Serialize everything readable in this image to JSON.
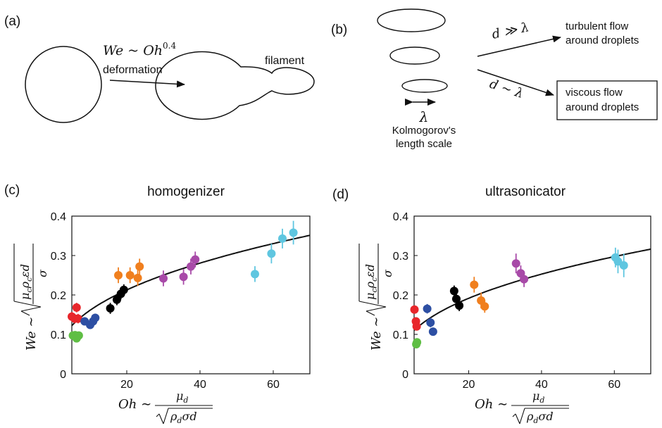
{
  "panel_a": {
    "label": "(a)",
    "relation": "We ~ Oh",
    "relation_exp": "0.4",
    "deformation": "deformation",
    "filament": "filament"
  },
  "panel_b": {
    "label": "(b)",
    "cond_large": "d ≫ λ",
    "cond_sim": "d ~ λ",
    "turbulent_1": "turbulent flow",
    "turbulent_2": "around droplets",
    "viscous_1": "viscous flow",
    "viscous_2": "around droplets",
    "lambda": "λ",
    "kolmo_1": "Kolmogorov's",
    "kolmo_2": "length scale"
  },
  "colors": {
    "red": "#e8262b",
    "green": "#5fbe44",
    "blue": "#2d4fa3",
    "black": "#000000",
    "orange": "#f07f1e",
    "purple": "#a84aa8",
    "cyan": "#5fc6e0"
  },
  "chart_data": [
    {
      "panel": "(c)",
      "type": "scatter",
      "title": "homogenizer",
      "xlim": [
        5,
        70
      ],
      "ylim": [
        0,
        0.4
      ],
      "xticks": [
        "20",
        "40",
        "60"
      ],
      "yticks": [
        "0",
        "0.1",
        "0.2",
        "0.3",
        "0.4"
      ],
      "fit": {
        "law": "We = a·Oh^0.4",
        "a": 0.0642,
        "exponent": 0.4
      },
      "points": [
        {
          "x": 5.0,
          "y": 0.145,
          "err": 0.012,
          "color": "red"
        },
        {
          "x": 5.8,
          "y": 0.14,
          "err": 0.012,
          "color": "red"
        },
        {
          "x": 6.3,
          "y": 0.168,
          "err": 0.012,
          "color": "red"
        },
        {
          "x": 6.7,
          "y": 0.14,
          "err": 0.012,
          "color": "red"
        },
        {
          "x": 5.3,
          "y": 0.097,
          "err": 0.006,
          "color": "green"
        },
        {
          "x": 5.9,
          "y": 0.098,
          "err": 0.006,
          "color": "green"
        },
        {
          "x": 6.3,
          "y": 0.09,
          "err": 0.006,
          "color": "green"
        },
        {
          "x": 6.9,
          "y": 0.097,
          "err": 0.006,
          "color": "green"
        },
        {
          "x": 8.5,
          "y": 0.133,
          "err": 0.01,
          "color": "blue"
        },
        {
          "x": 10.0,
          "y": 0.124,
          "err": 0.01,
          "color": "blue"
        },
        {
          "x": 10.8,
          "y": 0.133,
          "err": 0.01,
          "color": "blue"
        },
        {
          "x": 11.4,
          "y": 0.142,
          "err": 0.01,
          "color": "blue"
        },
        {
          "x": 15.5,
          "y": 0.166,
          "err": 0.014,
          "color": "black"
        },
        {
          "x": 17.3,
          "y": 0.188,
          "err": 0.014,
          "color": "black"
        },
        {
          "x": 18.4,
          "y": 0.203,
          "err": 0.014,
          "color": "black"
        },
        {
          "x": 19.2,
          "y": 0.213,
          "err": 0.014,
          "color": "black"
        },
        {
          "x": 17.7,
          "y": 0.25,
          "err": 0.02,
          "color": "orange"
        },
        {
          "x": 20.9,
          "y": 0.25,
          "err": 0.02,
          "color": "orange"
        },
        {
          "x": 23.0,
          "y": 0.243,
          "err": 0.02,
          "color": "orange"
        },
        {
          "x": 23.5,
          "y": 0.272,
          "err": 0.02,
          "color": "orange"
        },
        {
          "x": 30.0,
          "y": 0.242,
          "err": 0.02,
          "color": "purple"
        },
        {
          "x": 35.5,
          "y": 0.246,
          "err": 0.02,
          "color": "purple"
        },
        {
          "x": 37.5,
          "y": 0.272,
          "err": 0.02,
          "color": "purple"
        },
        {
          "x": 38.7,
          "y": 0.29,
          "err": 0.02,
          "color": "purple"
        },
        {
          "x": 55.0,
          "y": 0.253,
          "err": 0.02,
          "color": "cyan"
        },
        {
          "x": 59.5,
          "y": 0.305,
          "err": 0.025,
          "color": "cyan"
        },
        {
          "x": 62.5,
          "y": 0.343,
          "err": 0.025,
          "color": "cyan"
        },
        {
          "x": 65.5,
          "y": 0.358,
          "err": 0.03,
          "color": "cyan"
        }
      ]
    },
    {
      "panel": "(d)",
      "type": "scatter",
      "title": "ultrasonicator",
      "xlim": [
        5,
        70
      ],
      "ylim": [
        0,
        0.4
      ],
      "xticks": [
        "20",
        "40",
        "60"
      ],
      "yticks": [
        "0",
        "0.1",
        "0.2",
        "0.3",
        "0.4"
      ],
      "fit": {
        "law": "We = a·Oh^0.4",
        "a": 0.0578,
        "exponent": 0.4
      },
      "points": [
        {
          "x": 5.1,
          "y": 0.163,
          "err": 0.01,
          "color": "red"
        },
        {
          "x": 5.5,
          "y": 0.133,
          "err": 0.01,
          "color": "red"
        },
        {
          "x": 5.7,
          "y": 0.12,
          "err": 0.01,
          "color": "red"
        },
        {
          "x": 5.6,
          "y": 0.075,
          "err": 0.005,
          "color": "green"
        },
        {
          "x": 5.8,
          "y": 0.08,
          "err": 0.005,
          "color": "green"
        },
        {
          "x": 8.6,
          "y": 0.165,
          "err": 0.012,
          "color": "blue"
        },
        {
          "x": 9.5,
          "y": 0.13,
          "err": 0.012,
          "color": "blue"
        },
        {
          "x": 10.2,
          "y": 0.107,
          "err": 0.01,
          "color": "blue"
        },
        {
          "x": 16.0,
          "y": 0.21,
          "err": 0.014,
          "color": "black"
        },
        {
          "x": 16.6,
          "y": 0.19,
          "err": 0.014,
          "color": "black"
        },
        {
          "x": 17.4,
          "y": 0.173,
          "err": 0.014,
          "color": "black"
        },
        {
          "x": 21.5,
          "y": 0.226,
          "err": 0.02,
          "color": "orange"
        },
        {
          "x": 23.4,
          "y": 0.186,
          "err": 0.02,
          "color": "orange"
        },
        {
          "x": 24.4,
          "y": 0.171,
          "err": 0.016,
          "color": "orange"
        },
        {
          "x": 33.0,
          "y": 0.28,
          "err": 0.025,
          "color": "purple"
        },
        {
          "x": 34.3,
          "y": 0.255,
          "err": 0.02,
          "color": "purple"
        },
        {
          "x": 35.2,
          "y": 0.24,
          "err": 0.02,
          "color": "purple"
        },
        {
          "x": 60.3,
          "y": 0.295,
          "err": 0.025,
          "color": "cyan"
        },
        {
          "x": 61.0,
          "y": 0.285,
          "err": 0.03,
          "color": "cyan"
        },
        {
          "x": 62.6,
          "y": 0.275,
          "err": 0.03,
          "color": "cyan"
        }
      ]
    }
  ],
  "panels_cd": {
    "label_c": "(c)",
    "label_d": "(d)"
  }
}
